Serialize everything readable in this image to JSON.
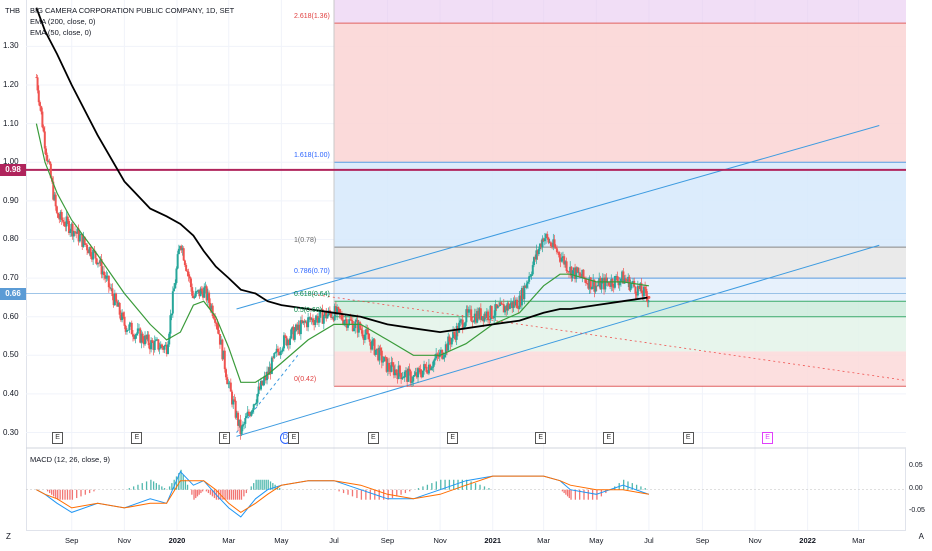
{
  "header": {
    "currency": "THB",
    "title": "BIG CAMERA CORPORATION PUBLIC COMPANY, 1D, SET",
    "ema200": "EMA (200, close, 0)",
    "ema50": "EMA (50, close, 0)",
    "macd": "MACD (12, 26, close, 9)"
  },
  "price_axis": {
    "ticks": [
      "1.30",
      "1.20",
      "1.10",
      "1.00",
      "0.90",
      "0.80",
      "0.70",
      "0.60",
      "0.50",
      "0.40",
      "0.30"
    ],
    "tag_red": "0.98",
    "tag_blue": "0.66"
  },
  "macd_axis": {
    "ticks": [
      "0.05",
      "0.00",
      "-0.05"
    ]
  },
  "time_axis": {
    "labels": [
      "Sep",
      "Nov",
      "2020",
      "Mar",
      "May",
      "Jul",
      "Sep",
      "Nov",
      "2021",
      "Mar",
      "May",
      "Jul",
      "Sep",
      "Nov",
      "2022",
      "Mar"
    ],
    "bold": [
      "2020",
      "2021",
      "2022"
    ],
    "corner_left": "Z",
    "corner_right": "A"
  },
  "fib_levels": [
    {
      "label": "2.618(1.36)",
      "price": 1.36,
      "color": "red"
    },
    {
      "label": "1.618(1.00)",
      "price": 1.0,
      "color": "blue"
    },
    {
      "label": "1(0.78)",
      "price": 0.78,
      "color": "gray"
    },
    {
      "label": "0.786(0.70)",
      "price": 0.7,
      "color": "blue"
    },
    {
      "label": "0.618(0.64)",
      "price": 0.64,
      "color": "green"
    },
    {
      "label": "0.5(0.60)",
      "price": 0.6,
      "color": "green"
    },
    {
      "label": "0(0.42)",
      "price": 0.42,
      "color": "red"
    }
  ],
  "earnings_markers": [
    "E",
    "E",
    "E",
    "D",
    "E",
    "E",
    "E",
    "E",
    "E",
    "E",
    "E"
  ],
  "colors": {
    "up": "#26a69a",
    "down": "#ef5350",
    "ema200": "#000000",
    "ema50": "#3a9b3a",
    "macd": "#2196f3",
    "signal": "#ff6d00",
    "red_line": "#b0245c",
    "channel": "#3d9be0"
  },
  "chart_data": {
    "type": "line",
    "title": "BIG CAMERA CORPORATION PUBLIC COMPANY, 1D, SET",
    "ylim": [
      0.26,
      1.42
    ],
    "x": [
      "2019-07-22",
      "2019-08-01",
      "2019-08-15",
      "2019-09-01",
      "2019-10-01",
      "2019-11-01",
      "2019-12-01",
      "2019-12-20",
      "2020-01-05",
      "2020-01-20",
      "2020-02-01",
      "2020-02-15",
      "2020-03-01",
      "2020-03-15",
      "2020-04-01",
      "2020-04-15",
      "2020-05-01",
      "2020-06-01",
      "2020-07-01",
      "2020-08-01",
      "2020-09-01",
      "2020-10-01",
      "2020-11-01",
      "2020-12-01",
      "2021-01-01",
      "2021-02-01",
      "2021-03-01",
      "2021-03-20",
      "2021-04-01",
      "2021-05-01",
      "2021-06-01",
      "2021-07-01"
    ],
    "series": [
      {
        "name": "close",
        "values": [
          1.22,
          1.05,
          0.86,
          0.83,
          0.75,
          0.58,
          0.53,
          0.52,
          0.8,
          0.65,
          0.67,
          0.6,
          0.42,
          0.3,
          0.39,
          0.45,
          0.53,
          0.59,
          0.61,
          0.57,
          0.47,
          0.44,
          0.5,
          0.6,
          0.61,
          0.64,
          0.81,
          0.76,
          0.72,
          0.68,
          0.7,
          0.65
        ]
      },
      {
        "name": "EMA (50, close, 0)",
        "values": [
          1.1,
          1.0,
          0.92,
          0.85,
          0.76,
          0.66,
          0.58,
          0.54,
          0.56,
          0.63,
          0.64,
          0.6,
          0.52,
          0.43,
          0.43,
          0.45,
          0.48,
          0.54,
          0.58,
          0.58,
          0.54,
          0.5,
          0.5,
          0.53,
          0.58,
          0.61,
          0.68,
          0.71,
          0.71,
          0.69,
          0.69,
          0.68
        ]
      },
      {
        "name": "EMA (200, close, 0)",
        "values": [
          1.4,
          1.34,
          1.28,
          1.2,
          1.07,
          0.95,
          0.88,
          0.86,
          0.84,
          0.81,
          0.77,
          0.73,
          0.7,
          0.67,
          0.66,
          0.64,
          0.63,
          0.62,
          0.61,
          0.6,
          0.58,
          0.57,
          0.56,
          0.57,
          0.58,
          0.59,
          0.61,
          0.62,
          0.62,
          0.63,
          0.64,
          0.65
        ]
      }
    ],
    "macd": {
      "name": "MACD (12, 26, close, 9)",
      "ylim": [
        -0.08,
        0.07
      ],
      "macd": [
        0.0,
        -0.01,
        -0.03,
        -0.05,
        -0.03,
        -0.04,
        -0.02,
        -0.03,
        0.04,
        0.01,
        0.02,
        -0.01,
        -0.04,
        -0.06,
        -0.02,
        0.0,
        0.01,
        0.02,
        0.02,
        0.0,
        -0.02,
        -0.02,
        0.0,
        0.02,
        0.03,
        0.03,
        0.03,
        0.02,
        0.0,
        -0.01,
        0.01,
        -0.01
      ],
      "signal": [
        0.0,
        -0.01,
        -0.02,
        -0.04,
        -0.03,
        -0.04,
        -0.03,
        -0.03,
        0.02,
        0.02,
        0.02,
        0.0,
        -0.03,
        -0.05,
        -0.03,
        -0.01,
        0.01,
        0.02,
        0.02,
        0.01,
        -0.01,
        -0.02,
        -0.01,
        0.01,
        0.03,
        0.03,
        0.03,
        0.02,
        0.01,
        0.0,
        0.0,
        -0.01
      ]
    },
    "levels": {
      "red_hline": 0.98,
      "blue_hline": 0.66
    },
    "grid": true,
    "legend": "top-left"
  }
}
